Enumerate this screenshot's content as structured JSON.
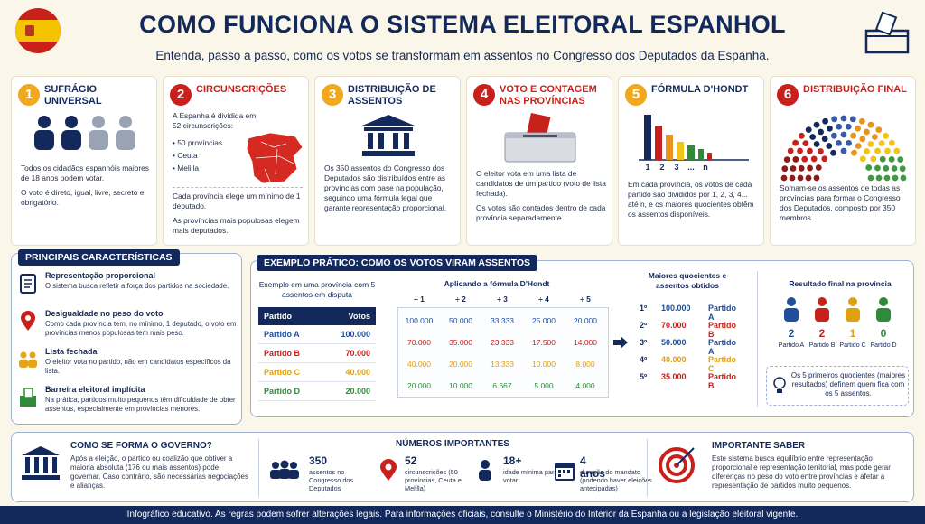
{
  "header": {
    "title": "COMO FUNCIONA O SISTEMA ELEITORAL ESPANHOL",
    "subtitle": "Entenda, passo a passo, como os votos se transformam em assentos no Congresso dos Deputados da Espanha."
  },
  "steps": [
    {
      "number": "1",
      "title": "SUFRÁGIO UNIVERSAL",
      "paragraphs": [
        "Todos os cidadãos espanhóis maiores de 18 anos podem votar.",
        "O voto é direto, igual, livre, secreto e obrigatório."
      ]
    },
    {
      "number": "2",
      "title": "CIRCUNSCRIÇÕES",
      "intro": "A Espanha é dividida em 52 circunscrições:",
      "bullets": [
        "50 províncias",
        "Ceuta",
        "Melilla"
      ],
      "paragraphs": [
        "Cada província elege um mínimo de 1 deputado.",
        "As províncias mais populosas elegem mais deputados."
      ]
    },
    {
      "number": "3",
      "title": "DISTRIBUIÇÃO DE ASSENTOS",
      "paragraphs": [
        "Os 350 assentos do Congresso dos Deputados são distribuídos entre as províncias com base na população, seguindo uma fórmula legal que garante representação proporcional."
      ]
    },
    {
      "number": "4",
      "title": "VOTO E CONTAGEM NAS PROVÍNCIAS",
      "paragraphs": [
        "O eleitor vota em uma lista de candidatos de um partido (voto de lista fechada).",
        "Os votos são contados dentro de cada província separadamente."
      ]
    },
    {
      "number": "5",
      "title": "FÓRMULA D'HONDT",
      "chart_labels": [
        "1",
        "2",
        "3",
        "...",
        "n"
      ],
      "paragraphs": [
        "Em cada província, os votos de cada partido são divididos por 1, 2, 3, 4... até n, e os maiores quocientes obtêm os assentos disponíveis."
      ]
    },
    {
      "number": "6",
      "title": "DISTRIBUIÇÃO FINAL",
      "paragraphs": [
        "Somam-se os assentos de todas as províncias para formar o Congresso dos Deputados, composto por 350 membros."
      ]
    }
  ],
  "characteristics": {
    "title": "PRINCIPAIS CARACTERÍSTICAS",
    "items": [
      {
        "title": "Representação proporcional",
        "text": "O sistema busca refletir a força dos partidos na sociedade."
      },
      {
        "title": "Desigualdade no peso do voto",
        "text": "Como cada província tem, no mínimo, 1 deputado, o voto em províncias menos populosas tem mais peso."
      },
      {
        "title": "Lista fechada",
        "text": "O eleitor vota no partido, não em candidatos específicos da lista."
      },
      {
        "title": "Barreira eleitoral implícita",
        "text": "Na prática, partidos muito pequenos têm dificuldade de obter assentos, especialmente em províncias menores."
      }
    ]
  },
  "example": {
    "title": "EXEMPLO PRÁTICO: COMO OS VOTOS VIRAM ASSENTOS",
    "intro": "Exemplo em uma província com 5 assentos em disputa",
    "votes_table": {
      "header": [
        "Partido",
        "Votos"
      ],
      "rows": [
        [
          "Partido A",
          "100.000"
        ],
        [
          "Partido B",
          "70.000"
        ],
        [
          "Partido C",
          "40.000"
        ],
        [
          "Partido D",
          "20.000"
        ]
      ]
    },
    "dhondt": {
      "title": "Aplicando a fórmula D'Hondt",
      "divisors": [
        "÷ 1",
        "÷ 2",
        "÷ 3",
        "÷ 4",
        "÷ 5"
      ],
      "rows": [
        [
          "100.000",
          "50.000",
          "33.333",
          "25.000",
          "20.000"
        ],
        [
          "70.000",
          "35.000",
          "23.333",
          "17.500",
          "14.000"
        ],
        [
          "40.000",
          "20.000",
          "13.333",
          "10.000",
          "8.000"
        ],
        [
          "20.000",
          "10.000",
          "6.667",
          "5.000",
          "4.000"
        ]
      ]
    },
    "ranking": {
      "title": "Maiores quocientes e assentos obtidos",
      "rows": [
        [
          "1º",
          "100.000",
          "Partido A"
        ],
        [
          "2º",
          "70.000",
          "Partido B"
        ],
        [
          "3º",
          "50.000",
          "Partido A"
        ],
        [
          "4º",
          "40.000",
          "Partido C"
        ],
        [
          "5º",
          "35.000",
          "Partido B"
        ]
      ]
    },
    "result": {
      "title": "Resultado final na província",
      "parties": [
        {
          "seats": 2,
          "name": "Partido A"
        },
        {
          "seats": 2,
          "name": "Partido B"
        },
        {
          "seats": 1,
          "name": "Partido C"
        },
        {
          "seats": 0,
          "name": "Partido D"
        }
      ]
    },
    "note": "Os 5 primeiros quocientes (maiores resultados) definem quem fica com os 5 assentos."
  },
  "government": {
    "title": "COMO SE FORMA O GOVERNO?",
    "text": "Após a eleição, o partido ou coalizão que obtiver a maioria absoluta (176 ou mais assentos) pode governar. Caso contrário, são necessárias negociações e alianças."
  },
  "numbers": {
    "title": "NÚMEROS IMPORTANTES",
    "items": [
      {
        "value": "350",
        "label": "assentos no Congresso dos Deputados"
      },
      {
        "value": "52",
        "label": "circunscrições (50 províncias, Ceuta e Melilla)"
      },
      {
        "value": "18+",
        "label": "idade mínima para votar"
      },
      {
        "value": "4 anos",
        "label": "duração do mandato (podendo haver eleições antecipadas)"
      }
    ]
  },
  "important": {
    "title": "IMPORTANTE SABER",
    "text": "Este sistema busca equilíbrio entre representação proporcional e representação territorial, mas pode gerar diferenças no peso do voto entre províncias e afetar a representação de partidos muito pequenos."
  },
  "footer": "Infográfico educativo. As regras podem sofrer alterações legais. Para informações oficiais, consulte o Ministério do Interior da Espanha ou a legislação eleitoral vigente."
}
